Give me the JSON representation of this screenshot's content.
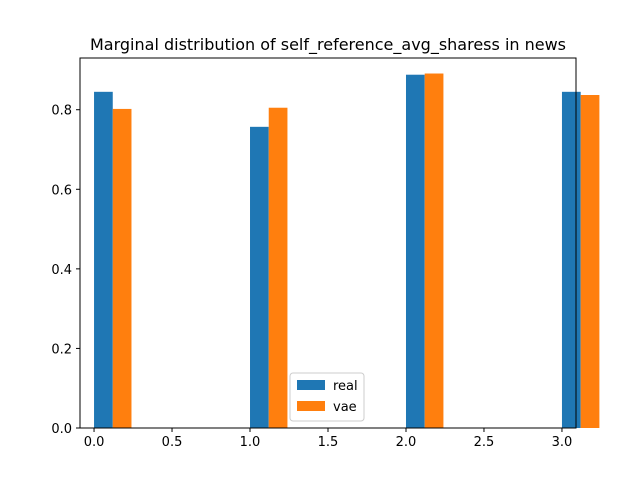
{
  "chart_data": {
    "type": "bar",
    "title": "Marginal distribution of self_reference_avg_sharess in news",
    "xlabel": "",
    "ylabel": "",
    "xlim": [
      -0.09,
      3.09
    ],
    "ylim": [
      0,
      0.93
    ],
    "xticks": [
      "0.0",
      "0.5",
      "1.0",
      "1.5",
      "2.0",
      "2.5",
      "3.0"
    ],
    "yticks": [
      "0.0",
      "0.2",
      "0.4",
      "0.6",
      "0.8"
    ],
    "grid": false,
    "legend_position": "lower-center",
    "bar_width": 0.12,
    "x": [
      0,
      1,
      2,
      3
    ],
    "series": [
      {
        "name": "real",
        "color": "#1f77b4",
        "values": [
          0.845,
          0.757,
          0.888,
          0.845
        ],
        "offset": 0.0
      },
      {
        "name": "vae",
        "color": "#ff7f0e",
        "values": [
          0.802,
          0.805,
          0.891,
          0.837
        ],
        "offset": 0.12
      }
    ]
  }
}
